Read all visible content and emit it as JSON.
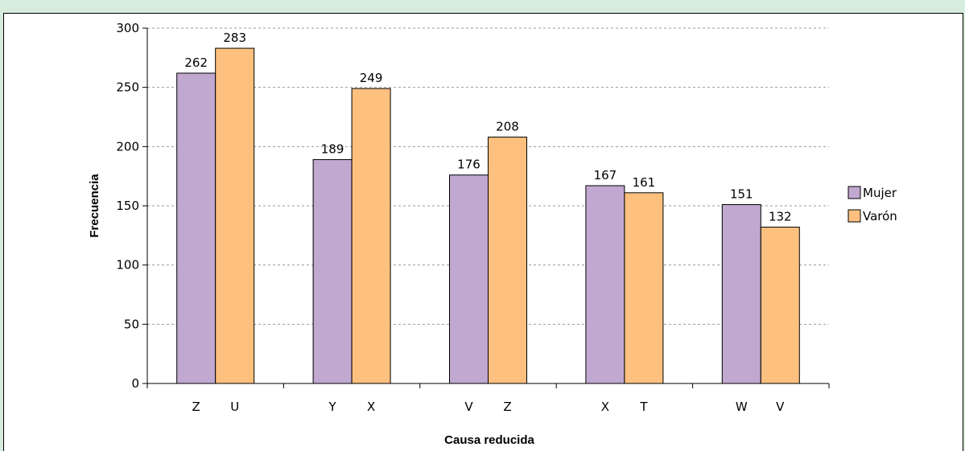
{
  "chart_data": {
    "type": "bar",
    "xlabel": "Causa reducida",
    "ylabel": "Frecuencia",
    "ylim": [
      0,
      300
    ],
    "yticks": [
      0,
      50,
      100,
      150,
      200,
      250,
      300
    ],
    "grid": "horizontal dashed",
    "legend_position": "right",
    "groups": [
      {
        "labels": [
          "Z",
          "U"
        ],
        "values": [
          262,
          283
        ]
      },
      {
        "labels": [
          "Y",
          "X"
        ],
        "values": [
          189,
          249
        ]
      },
      {
        "labels": [
          "V",
          "Z"
        ],
        "values": [
          176,
          208
        ]
      },
      {
        "labels": [
          "X",
          "T"
        ],
        "values": [
          167,
          161
        ]
      },
      {
        "labels": [
          "W",
          "V"
        ],
        "values": [
          151,
          132
        ]
      }
    ],
    "series": [
      {
        "name": "Mujer",
        "color": "#c0a8d0"
      },
      {
        "name": "Varón",
        "color": "#fdc07e"
      }
    ]
  }
}
